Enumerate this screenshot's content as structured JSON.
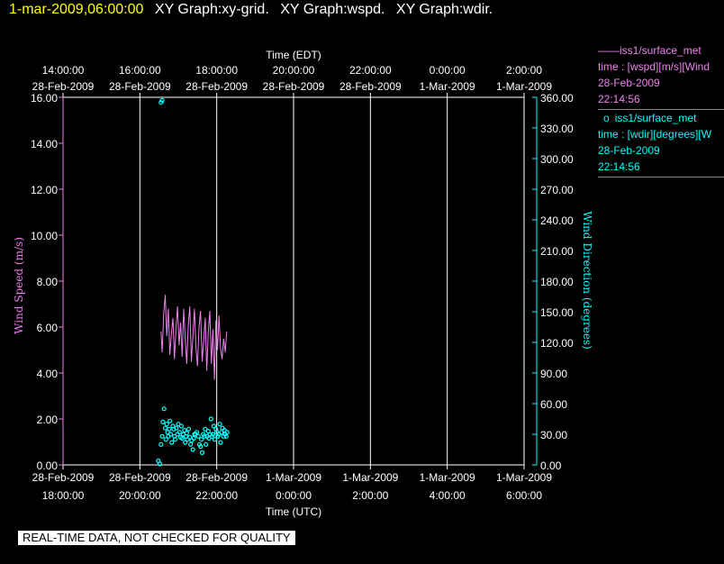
{
  "header": {
    "timestamp": "1-mar-2009,06:00:00",
    "graphs": [
      "XY Graph:xy-grid.",
      "XY Graph:wspd.",
      "XY Graph:wdir."
    ]
  },
  "legend": [
    {
      "marker": "——",
      "title": "iss1/surface_met",
      "desc": "time : [wspd][m/s][Wind",
      "date": "28-Feb-2009",
      "time": "22:14:56",
      "color": "#ee82ee"
    },
    {
      "marker": "o",
      "title": "iss1/surface_met",
      "desc": "time : [wdir][degrees][W",
      "date": "28-Feb-2009",
      "time": "22:14:56",
      "color": "#00ffff"
    }
  ],
  "footer": {
    "quality_note": "REAL-TIME DATA, NOT CHECKED FOR QUALITY"
  },
  "colors": {
    "wspd": "#ee82ee",
    "wdir": "#00ffff",
    "timestamp": "#ffff00",
    "grid": "#ffffff",
    "background": "#000000"
  },
  "chart_data": {
    "type": "scatter",
    "top_axis": {
      "label": "Time (EDT)",
      "ticks": [
        {
          "time": "14:00:00",
          "date": "28-Feb-2009"
        },
        {
          "time": "16:00:00",
          "date": "28-Feb-2009"
        },
        {
          "time": "18:00:00",
          "date": "28-Feb-2009"
        },
        {
          "time": "20:00:00",
          "date": "28-Feb-2009"
        },
        {
          "time": "22:00:00",
          "date": "28-Feb-2009"
        },
        {
          "time": "0:00:00",
          "date": "1-Mar-2009"
        },
        {
          "time": "2:00:00",
          "date": "1-Mar-2009"
        }
      ]
    },
    "bottom_axis": {
      "label": "Time (UTC)",
      "ticks": [
        {
          "date": "28-Feb-2009",
          "time": "18:00:00"
        },
        {
          "date": "28-Feb-2009",
          "time": "20:00:00"
        },
        {
          "date": "28-Feb-2009",
          "time": "22:00:00"
        },
        {
          "date": "1-Mar-2009",
          "time": "0:00:00"
        },
        {
          "date": "1-Mar-2009",
          "time": "2:00:00"
        },
        {
          "date": "1-Mar-2009",
          "time": "4:00:00"
        },
        {
          "date": "1-Mar-2009",
          "time": "6:00:00"
        }
      ]
    },
    "x_range_utc_hours": [
      18,
      30
    ],
    "left_axis": {
      "label": "Wind Speed (m/s)",
      "ylim": [
        0,
        16
      ],
      "ticks": [
        "0.00",
        "2.00",
        "4.00",
        "6.00",
        "8.00",
        "10.00",
        "12.00",
        "14.00",
        "16.00"
      ]
    },
    "right_axis": {
      "label": "Wind Direction (degrees)",
      "ylim": [
        0,
        360
      ],
      "ticks": [
        "0.00",
        "30.00",
        "60.00",
        "90.00",
        "120.00",
        "150.00",
        "180.00",
        "210.00",
        "240.00",
        "270.00",
        "300.00",
        "330.00",
        "360.00"
      ]
    },
    "grid": "vertical",
    "series": [
      {
        "name": "iss1/surface_met wspd",
        "type": "line",
        "axis": "left",
        "x": [
          20.55,
          20.58,
          20.62,
          20.66,
          20.7,
          20.74,
          20.78,
          20.82,
          20.86,
          20.9,
          20.94,
          20.98,
          21.02,
          21.06,
          21.1,
          21.14,
          21.18,
          21.22,
          21.26,
          21.3,
          21.34,
          21.38,
          21.42,
          21.46,
          21.5,
          21.54,
          21.58,
          21.62,
          21.66,
          21.7,
          21.74,
          21.78,
          21.82,
          21.86,
          21.9,
          21.94,
          21.98,
          22.02,
          22.06,
          22.1,
          22.14,
          22.18,
          22.22,
          22.26
        ],
        "y": [
          5.8,
          4.9,
          6.6,
          7.4,
          5.6,
          6.8,
          4.8,
          5.7,
          6.4,
          4.6,
          5.9,
          6.9,
          5.2,
          6.2,
          4.7,
          6.8,
          5.5,
          4.4,
          6.1,
          6.9,
          4.5,
          5.6,
          6.8,
          5.1,
          4.3,
          6.0,
          6.7,
          4.5,
          5.4,
          6.4,
          4.1,
          5.8,
          6.7,
          4.4,
          5.9,
          3.7,
          6.3,
          5.0,
          6.5,
          5.1,
          4.6,
          5.5,
          4.9,
          5.8
        ]
      },
      {
        "name": "iss1/surface_met wdir",
        "type": "scatter",
        "axis": "right",
        "x": [
          20.48,
          20.52,
          20.55,
          20.58,
          20.6,
          20.63,
          20.66,
          20.68,
          20.7,
          20.72,
          20.74,
          20.76,
          20.78,
          20.8,
          20.83,
          20.86,
          20.88,
          20.9,
          20.92,
          20.95,
          20.98,
          21.0,
          21.03,
          21.06,
          21.08,
          21.1,
          21.13,
          21.16,
          21.18,
          21.2,
          21.22,
          21.24,
          21.27,
          21.3,
          21.32,
          21.35,
          21.38,
          21.4,
          21.42,
          21.45,
          21.48,
          21.52,
          21.55,
          21.58,
          21.6,
          21.62,
          21.65,
          21.68,
          21.7,
          21.72,
          21.75,
          21.78,
          21.8,
          21.82,
          21.85,
          21.88,
          21.9,
          21.92,
          21.95,
          21.98,
          22.0,
          22.03,
          22.06,
          22.08,
          22.1,
          22.12,
          22.15,
          22.18,
          22.2,
          22.22,
          22.25,
          22.27,
          20.55,
          20.58
        ],
        "y": [
          4,
          1,
          20,
          28,
          42,
          55,
          36,
          25,
          40,
          32,
          28,
          35,
          43,
          30,
          22,
          38,
          35,
          28,
          25,
          36,
          30,
          40,
          32,
          27,
          38,
          26,
          30,
          34,
          22,
          28,
          31,
          25,
          35,
          27,
          20,
          24,
          15,
          26,
          30,
          30,
          32,
          28,
          20,
          18,
          25,
          12,
          30,
          28,
          35,
          20,
          28,
          33,
          26,
          30,
          45,
          28,
          30,
          38,
          25,
          35,
          32,
          28,
          30,
          40,
          22,
          32,
          36,
          28,
          34,
          30,
          28,
          32,
          355,
          357
        ]
      }
    ]
  }
}
